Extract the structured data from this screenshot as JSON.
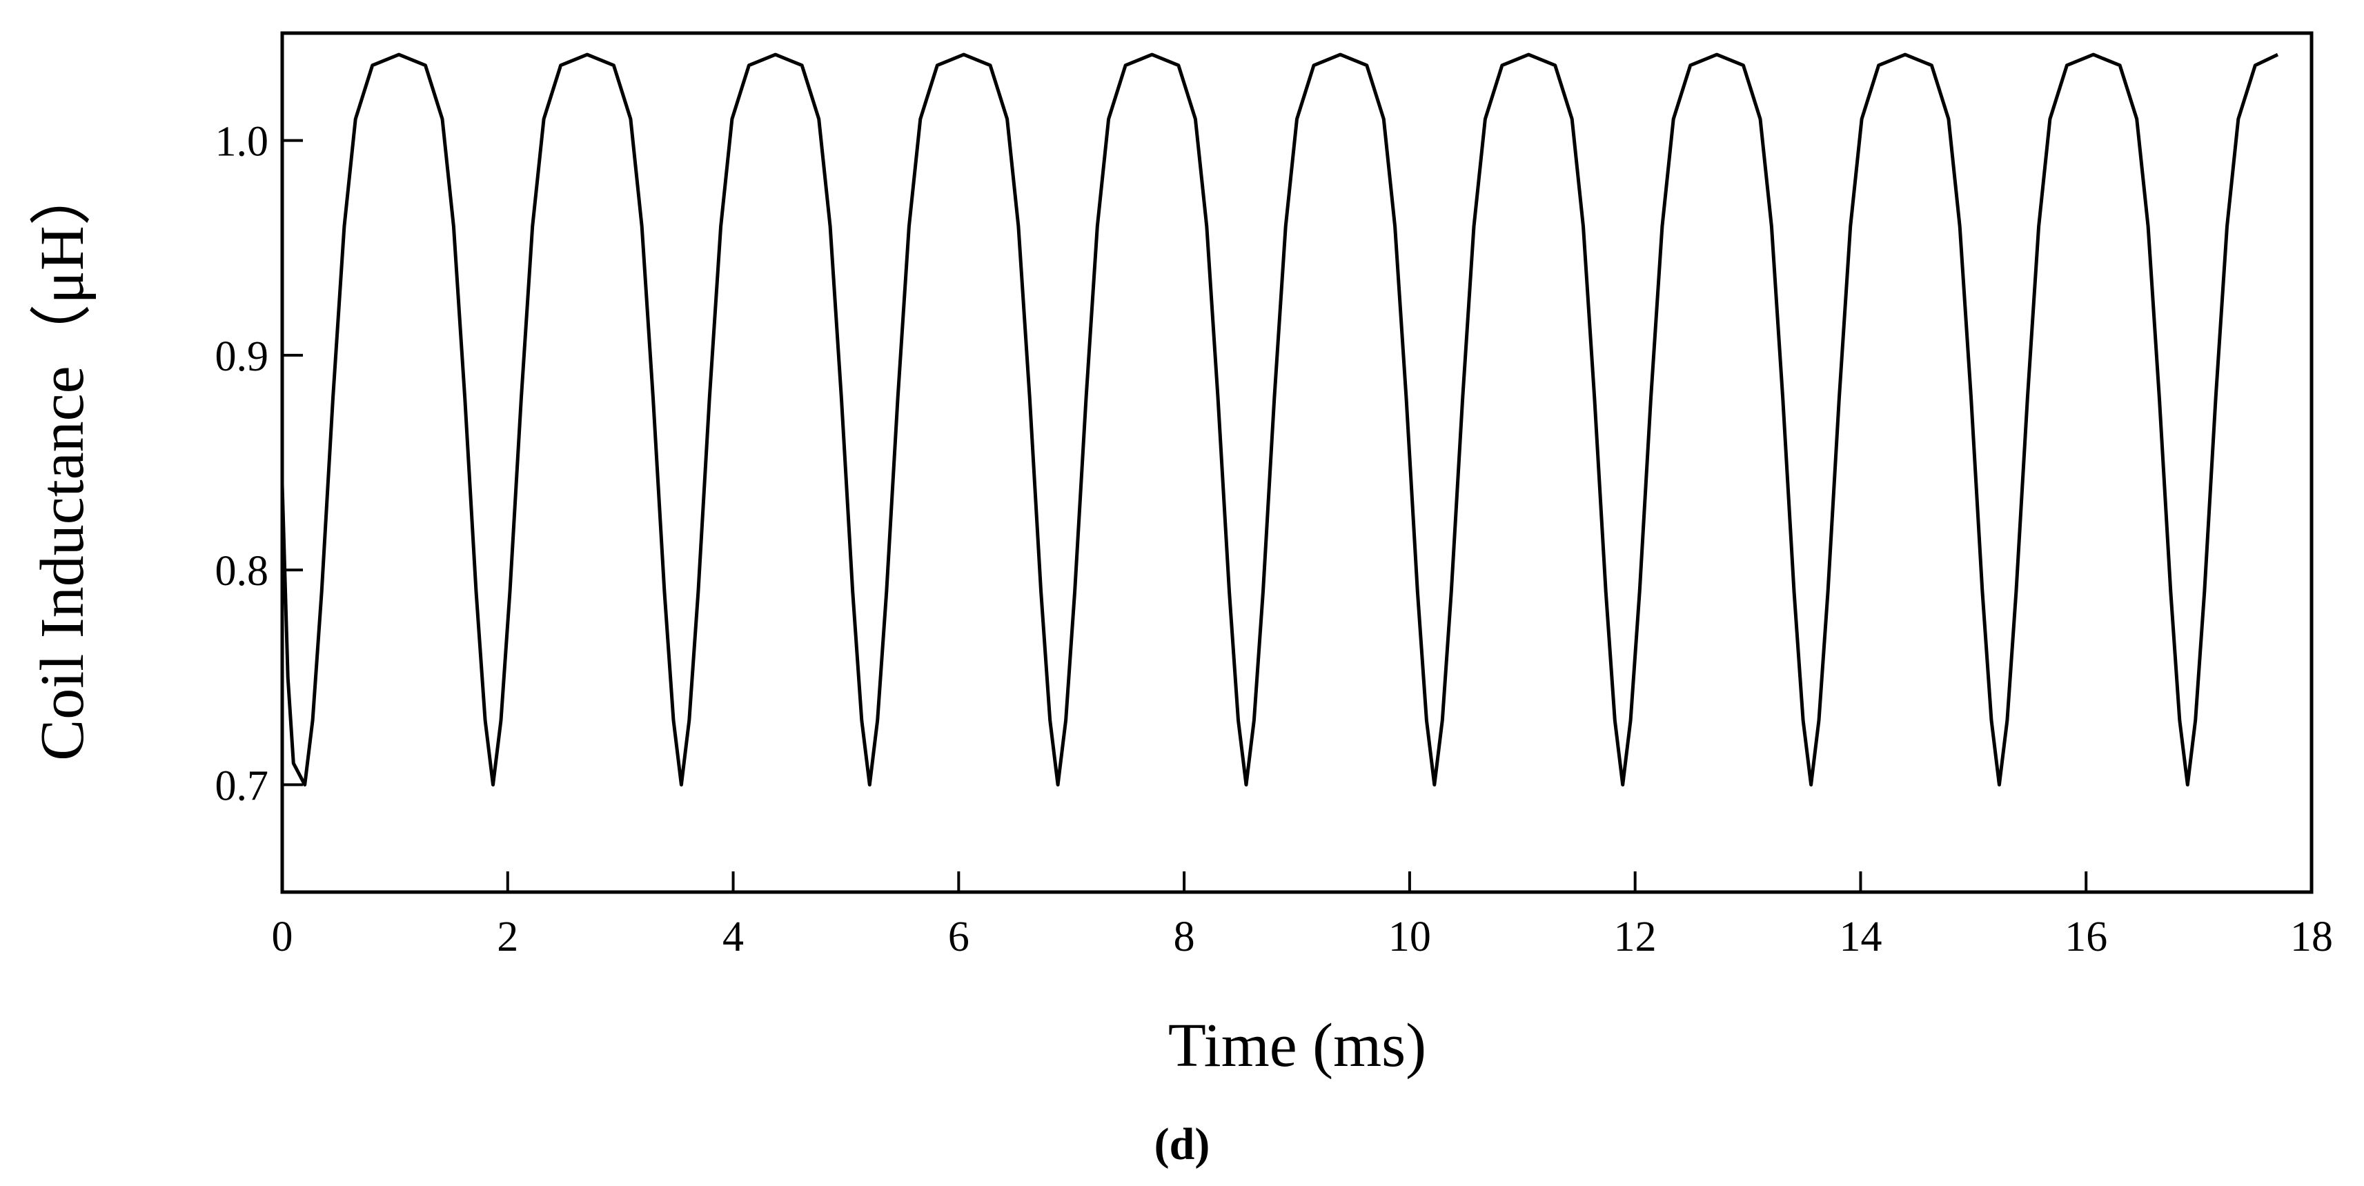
{
  "chart_data": {
    "type": "line",
    "xlabel": "Time (ms)",
    "ylabel": "Coil Inductance（μH）",
    "caption": "(d)",
    "xlim": [
      0,
      18
    ],
    "xticks": [
      0,
      2,
      4,
      6,
      8,
      10,
      12,
      14,
      16,
      18
    ],
    "ylim": [
      0.65,
      1.05
    ],
    "yticks": [
      0.7,
      0.8,
      0.9,
      {
        "value": 1.0,
        "label": "1.0"
      }
    ],
    "series": [
      {
        "name": "Coil Inductance",
        "color": "#000000",
        "x": [
          0,
          0.05,
          0.1,
          0.2,
          0.27,
          0.35,
          0.45,
          0.55,
          0.65,
          0.8,
          1.035,
          1.27,
          1.42,
          1.52,
          1.62,
          1.72,
          1.8,
          1.87,
          1.94,
          2.02,
          2.12,
          2.22,
          2.32,
          2.47,
          2.705,
          2.94,
          3.09,
          3.19,
          3.29,
          3.39,
          3.47,
          3.54,
          3.61,
          3.69,
          3.79,
          3.89,
          3.99,
          4.14,
          4.375,
          4.61,
          4.76,
          4.86,
          4.96,
          5.06,
          5.14,
          5.21,
          5.28,
          5.36,
          5.46,
          5.56,
          5.66,
          5.81,
          6.045,
          6.28,
          6.43,
          6.53,
          6.63,
          6.73,
          6.81,
          6.88,
          6.95,
          7.03,
          7.13,
          7.23,
          7.33,
          7.48,
          7.715,
          7.95,
          8.1,
          8.2,
          8.3,
          8.4,
          8.48,
          8.55,
          8.62,
          8.7,
          8.8,
          8.9,
          9.0,
          9.15,
          9.385,
          9.62,
          9.77,
          9.87,
          9.97,
          10.07,
          10.15,
          10.22,
          10.29,
          10.37,
          10.47,
          10.57,
          10.67,
          10.82,
          11.055,
          11.29,
          11.44,
          11.54,
          11.64,
          11.74,
          11.82,
          11.89,
          11.96,
          12.04,
          12.14,
          12.24,
          12.34,
          12.49,
          12.725,
          12.96,
          13.11,
          13.21,
          13.31,
          13.41,
          13.49,
          13.56,
          13.63,
          13.71,
          13.81,
          13.91,
          14.01,
          14.16,
          14.395,
          14.63,
          14.78,
          14.88,
          14.98,
          15.08,
          15.16,
          15.23,
          15.3,
          15.38,
          15.48,
          15.58,
          15.68,
          15.83,
          16.065,
          16.3,
          16.45,
          16.55,
          16.65,
          16.75,
          16.83,
          16.9,
          16.97,
          17.05,
          17.15,
          17.25,
          17.35,
          17.5,
          17.7
        ],
        "values": [
          0.84,
          0.75,
          0.71,
          0.7,
          0.73,
          0.79,
          0.88,
          0.96,
          1.01,
          1.035,
          1.04,
          1.035,
          1.01,
          0.96,
          0.88,
          0.79,
          0.73,
          0.7,
          0.73,
          0.79,
          0.88,
          0.96,
          1.01,
          1.035,
          1.04,
          1.035,
          1.01,
          0.96,
          0.88,
          0.79,
          0.73,
          0.7,
          0.73,
          0.79,
          0.88,
          0.96,
          1.01,
          1.035,
          1.04,
          1.035,
          1.01,
          0.96,
          0.88,
          0.79,
          0.73,
          0.7,
          0.73,
          0.79,
          0.88,
          0.96,
          1.01,
          1.035,
          1.04,
          1.035,
          1.01,
          0.96,
          0.88,
          0.79,
          0.73,
          0.7,
          0.73,
          0.79,
          0.88,
          0.96,
          1.01,
          1.035,
          1.04,
          1.035,
          1.01,
          0.96,
          0.88,
          0.79,
          0.73,
          0.7,
          0.73,
          0.79,
          0.88,
          0.96,
          1.01,
          1.035,
          1.04,
          1.035,
          1.01,
          0.96,
          0.88,
          0.79,
          0.73,
          0.7,
          0.73,
          0.79,
          0.88,
          0.96,
          1.01,
          1.035,
          1.04,
          1.035,
          1.01,
          0.96,
          0.88,
          0.79,
          0.73,
          0.7,
          0.73,
          0.79,
          0.88,
          0.96,
          1.01,
          1.035,
          1.04,
          1.035,
          1.01,
          0.96,
          0.88,
          0.79,
          0.73,
          0.7,
          0.73,
          0.79,
          0.88,
          0.96,
          1.01,
          1.035,
          1.04,
          1.035,
          1.01,
          0.96,
          0.88,
          0.79,
          0.73,
          0.7,
          0.73,
          0.79,
          0.88,
          0.96,
          1.01,
          1.035,
          1.04,
          1.035,
          1.01,
          0.96,
          0.88,
          0.79,
          0.73,
          0.7,
          0.73,
          0.79,
          0.88,
          0.96,
          1.01,
          1.035,
          1.04
        ]
      }
    ]
  }
}
